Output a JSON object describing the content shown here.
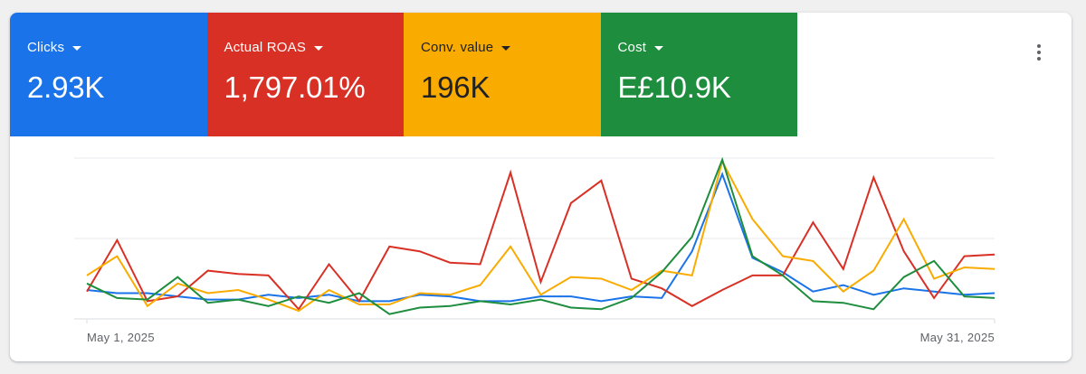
{
  "tiles": [
    {
      "label": "Clicks",
      "value": "2.93K",
      "color": "#1a73e8",
      "text_color": "light"
    },
    {
      "label": "Actual ROAS",
      "value": "1,797.01%",
      "color": "#d93025",
      "text_color": "light"
    },
    {
      "label": "Conv. value",
      "value": "196K",
      "color": "#f9ab00",
      "text_color": "dark"
    },
    {
      "label": "Cost",
      "value": "E£10.9K",
      "color": "#1e8e3e",
      "text_color": "light"
    }
  ],
  "menu_icon": "more-vert-icon",
  "chart_data": {
    "type": "line",
    "title": "",
    "xlabel": "",
    "ylabel": "",
    "x_tick_labels": [
      "May 1, 2025",
      "May 31, 2025"
    ],
    "x": [
      1,
      2,
      3,
      4,
      5,
      6,
      7,
      8,
      9,
      10,
      11,
      12,
      13,
      14,
      15,
      16,
      17,
      18,
      19,
      20,
      21,
      22,
      23,
      24,
      25,
      26,
      27,
      28,
      29,
      30,
      31
    ],
    "y_axis": "normalized per series (no labels shown)",
    "ylim": [
      0,
      100
    ],
    "grid": true,
    "legend": "metric tiles above chart",
    "series": [
      {
        "name": "Clicks",
        "color": "#1a73e8",
        "values": [
          18,
          16,
          16,
          14,
          12,
          12,
          15,
          13,
          15,
          11,
          11,
          15,
          14,
          11,
          11,
          14,
          14,
          11,
          14,
          13,
          42,
          90,
          38,
          29,
          17,
          21,
          15,
          19,
          17,
          15,
          16
        ]
      },
      {
        "name": "Actual ROAS",
        "color": "#d93025",
        "values": [
          17,
          49,
          11,
          14,
          30,
          28,
          27,
          6,
          34,
          11,
          45,
          42,
          35,
          34,
          91,
          23,
          72,
          86,
          25,
          19,
          8,
          18,
          27,
          27,
          60,
          31,
          88,
          42,
          13,
          39,
          40
        ]
      },
      {
        "name": "Conv. value",
        "color": "#f9ab00",
        "values": [
          27,
          39,
          8,
          22,
          16,
          18,
          12,
          5,
          18,
          9,
          9,
          16,
          15,
          21,
          45,
          15,
          26,
          25,
          18,
          30,
          27,
          98,
          62,
          39,
          36,
          17,
          30,
          62,
          25,
          32,
          31
        ]
      },
      {
        "name": "Cost",
        "color": "#1e8e3e",
        "values": [
          22,
          13,
          12,
          26,
          10,
          12,
          8,
          14,
          10,
          16,
          3,
          7,
          8,
          11,
          9,
          12,
          7,
          6,
          13,
          29,
          51,
          99,
          39,
          27,
          11,
          10,
          6,
          26,
          36,
          14,
          13
        ]
      }
    ]
  }
}
